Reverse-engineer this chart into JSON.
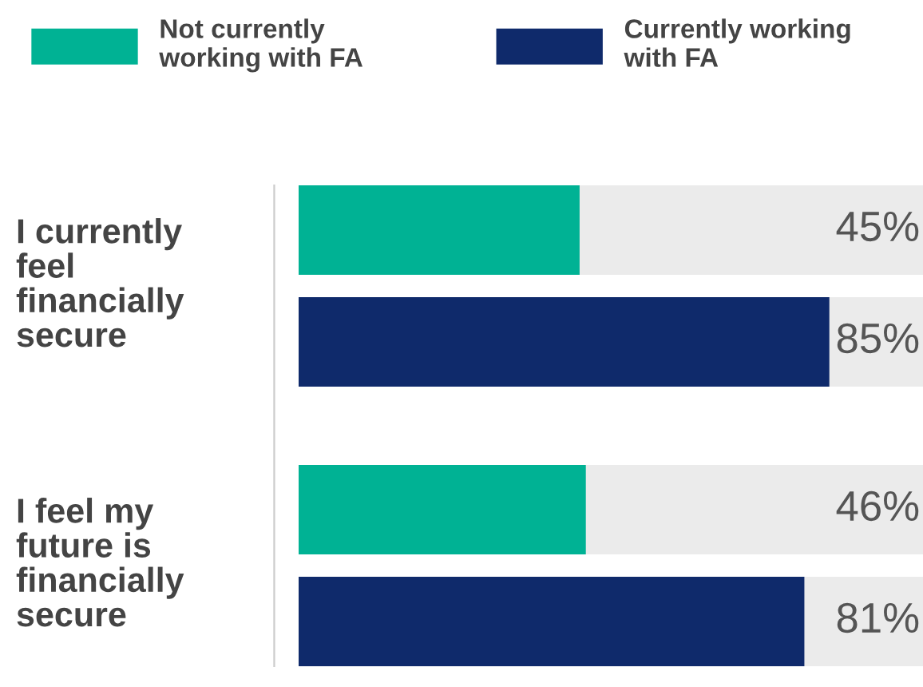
{
  "chart_data": {
    "type": "bar",
    "orientation": "horizontal",
    "categories": [
      "I currently\nfeel\nfinancially\nsecure",
      "I feel my\nfuture is\nfinancially\nsecure"
    ],
    "xlim": [
      0,
      100
    ],
    "series": [
      {
        "name": "Not currently\nworking with FA",
        "color": "#00b294",
        "values": [
          45,
          46
        ],
        "value_labels": [
          "45%",
          "46%"
        ]
      },
      {
        "name": "Currently working\nwith FA",
        "color": "#0f2a6b",
        "values": [
          85,
          81
        ],
        "value_labels": [
          "85%",
          "81%"
        ]
      }
    ],
    "legend": "top"
  }
}
